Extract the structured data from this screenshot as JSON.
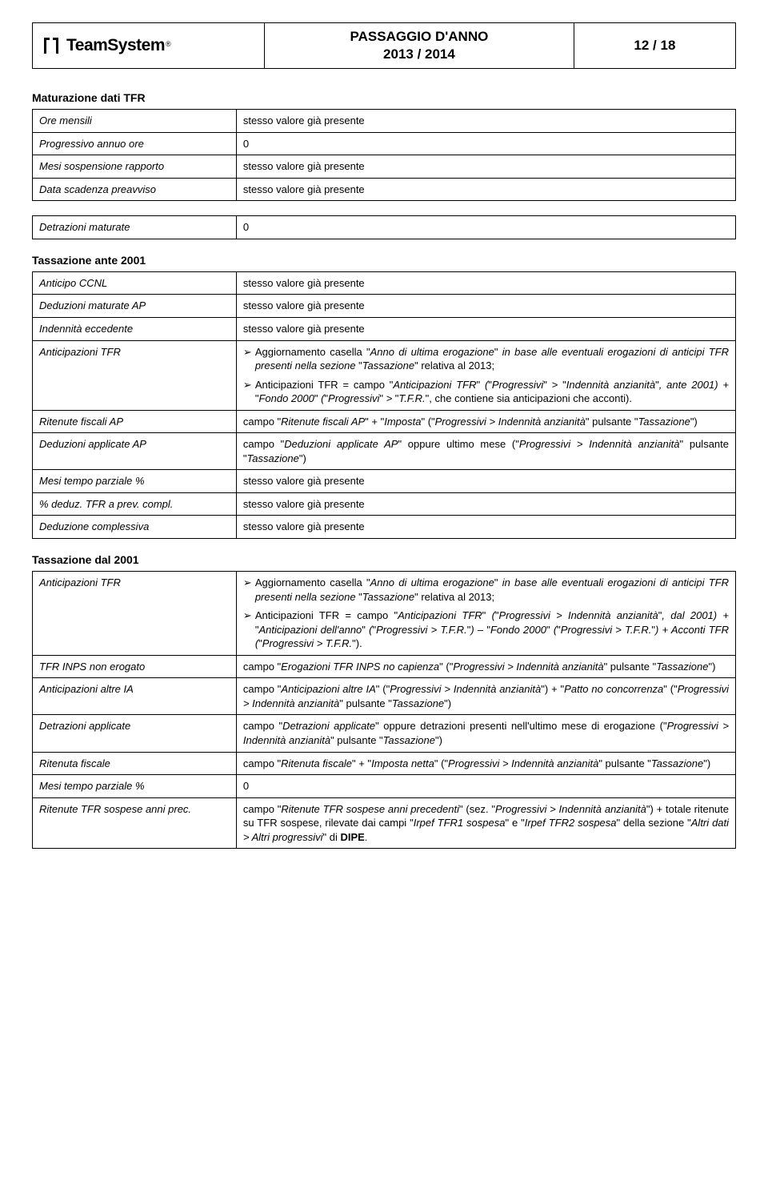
{
  "header": {
    "logo_text": "TeamSystem",
    "logo_reg": "®",
    "title_line1": "PASSAGGIO D'ANNO",
    "title_line2": "2013 / 2014",
    "page_num": "12 / 18"
  },
  "sections": {
    "s1_heading": "Maturazione dati TFR",
    "s1_rows": {
      "r0_l": "Ore mensili",
      "r0_r": "stesso valore già presente",
      "r1_l": "Progressivo annuo ore",
      "r1_r": "0",
      "r2_l": "Mesi sospensione rapporto",
      "r2_r": "stesso valore già presente",
      "r3_l": "Data scadenza preavviso",
      "r3_r": "stesso valore già presente"
    },
    "s2_rows": {
      "r0_l": "Detrazioni maturate",
      "r0_r": "0"
    },
    "s3_heading": "Tassazione ante 2001",
    "s3_rows": {
      "r0_l": "Anticipo CCNL",
      "r0_r": "stesso valore già presente",
      "r1_l": "Deduzioni maturate AP",
      "r1_r": "stesso valore già presente",
      "r2_l": "Indennità eccedente",
      "r2_r": "stesso valore già presente",
      "r3_l": "Anticipazioni TFR",
      "r3_b1": "Aggiornamento casella \"Anno di ultima erogazione\" in base alle eventuali erogazioni di anticipi TFR presenti nella sezione \"Tassazione\" relativa al 2013;",
      "r3_b2": "Anticipazioni TFR = campo \"Anticipazioni TFR\" (\"Progressivi\" > \"Indennità anzianità\", ante 2001) + \"Fondo 2000\" (\"Progressivi\" > \"T.F.R.\", che contiene sia anticipazioni che acconti).",
      "r4_l": "Ritenute fiscali AP",
      "r4_r": "campo \"Ritenute fiscali AP\" + \"Imposta\" (\"Progressivi > Indennità anzianità\" pulsante \"Tassazione\")",
      "r5_l": "Deduzioni applicate AP",
      "r5_r": "campo \"Deduzioni applicate AP\" oppure ultimo mese (\"Progressivi > Indennità anzianità\" pulsante \"Tassazione\")",
      "r6_l": "Mesi tempo parziale %",
      "r6_r": "stesso valore già presente",
      "r7_l": "% deduz. TFR a prev. compl.",
      "r7_r": "stesso valore già presente",
      "r8_l": "Deduzione complessiva",
      "r8_r": "stesso valore già presente"
    },
    "s4_heading": "Tassazione dal 2001",
    "s4_rows": {
      "r0_l": "Anticipazioni TFR",
      "r0_b1": "Aggiornamento casella \"Anno di ultima erogazione\" in base alle eventuali erogazioni di anticipi TFR presenti nella sezione \"Tassazione\" relativa al 2013;",
      "r0_b2": "Anticipazioni TFR = campo \"Anticipazioni TFR\" (\"Progressivi > Indennità anzianità\", dal 2001) + \"Anticipazioni dell'anno\" (\"Progressivi > T.F.R.\") – \"Fondo 2000\" (\"Progressivi > T.F.R.\") + Acconti TFR (\"Progressivi > T.F.R.\").",
      "r1_l": "TFR INPS non erogato",
      "r1_r": "campo \"Erogazioni TFR INPS no capienza\" (\"Progressivi > Indennità anzianità\" pulsante \"Tassazione\")",
      "r2_l": "Anticipazioni altre IA",
      "r2_r": "campo \"Anticipazioni altre IA\" (\"Progressivi > Indennità anzianità\") + \"Patto no concorrenza\" (\"Progressivi > Indennità anzianità\" pulsante \"Tassazione\")",
      "r3_l": "Detrazioni applicate",
      "r3_r": "campo \"Detrazioni applicate\" oppure detrazioni presenti nell'ultimo mese di erogazione (\"Progressivi > Indennità anzianità\" pulsante \"Tassazione\")",
      "r4_l": "Ritenuta fiscale",
      "r4_r": "campo \"Ritenuta fiscale\" + \"Imposta netta\" (\"Progressivi > Indennità anzianità\" pulsante \"Tassazione\")",
      "r5_l": "Mesi tempo parziale %",
      "r5_r": "0",
      "r6_l": "Ritenute TFR sospese anni prec.",
      "r6_r": "campo \"Ritenute TFR sospese anni precedenti\" (sez. \"Progressivi > Indennità anzianità\") + totale ritenute su TFR sospese, rilevate dai campi \"Irpef TFR1 sospesa\" e \"Irpef TFR2 sospesa\" della sezione \"Altri dati > Altri progressivi\" di DIPE."
    }
  }
}
